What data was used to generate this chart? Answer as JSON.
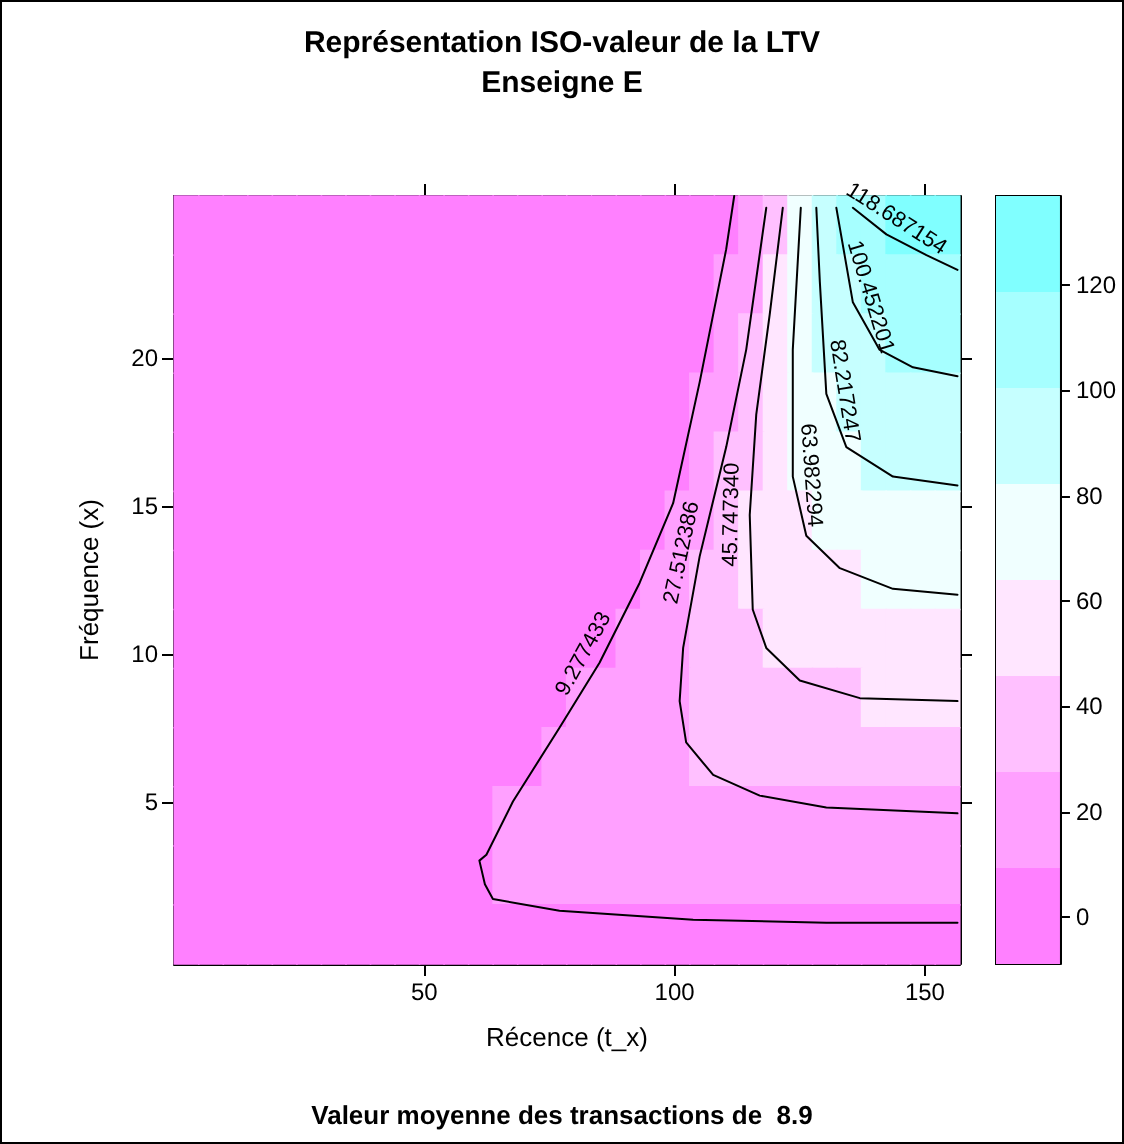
{
  "chart_data": {
    "type": "scatter",
    "title": "Représentation ISO-valeur de la LTV",
    "subtitle": "Enseigne E",
    "xlabel": "Récence (t_x)",
    "ylabel": "Fréquence (x)",
    "annotations": [
      "Valeur moyenne des transactions de  8.9"
    ],
    "xlim": [
      0,
      157
    ],
    "xticks": [
      50,
      100,
      150
    ],
    "ylim": [
      -0.5,
      25.5
    ],
    "yticks": [
      5,
      10,
      15,
      20
    ],
    "clim": [
      -8.96,
      136.92
    ],
    "cticks": [
      0,
      20,
      40,
      60,
      80,
      100,
      120
    ],
    "colors": [
      "#ff80ff",
      "#ffa0ff",
      "#ffc0ff",
      "#ffe6ff",
      "#f0ffff",
      "#c6ffff",
      "#a6ffff",
      "#80ffff"
    ],
    "marker": "square",
    "series": [
      {
        "x": [
          2.5,
          7.4,
          12.3,
          17.2,
          22.1,
          27,
          31.9,
          36.8,
          41.7,
          46.6,
          51.5,
          56.4,
          61.3,
          66.2,
          71.1,
          76,
          80.9,
          85.9,
          90.8,
          95.7,
          100.6,
          105.5,
          110.4,
          115.3,
          120.2,
          125.1,
          130,
          134.9,
          139.8,
          144.7,
          149.6,
          154.5,
          2.5,
          7.4,
          12.3,
          17.2,
          22.1,
          27,
          31.9,
          36.8,
          41.7,
          46.6,
          51.5,
          56.4,
          61.3,
          66.2,
          71.1,
          76,
          80.9,
          85.9,
          90.8,
          95.7,
          100.6,
          105.5,
          110.4,
          115.3,
          120.2,
          125.1,
          130,
          134.9,
          139.8,
          144.7,
          149.6,
          154.5,
          2.5,
          7.4,
          12.3,
          17.2,
          22.1,
          27,
          31.9,
          36.8,
          41.7,
          46.6,
          51.5,
          56.4,
          61.3,
          66.2,
          71.1,
          76,
          80.9,
          85.9,
          90.8,
          95.7,
          100.6,
          105.5,
          110.4,
          115.3,
          120.2,
          125.1,
          130,
          134.9,
          139.8,
          144.7,
          149.6,
          154.5,
          2.5,
          7.4,
          12.3,
          17.2,
          22.1,
          27,
          31.9,
          36.8,
          41.7,
          46.6,
          51.5,
          56.4,
          61.3,
          66.2,
          71.1,
          76,
          80.9,
          85.9,
          90.8,
          95.7,
          100.6,
          105.5,
          110.4,
          115.3,
          120.2,
          125.1,
          130,
          134.9,
          139.8,
          144.7,
          149.6,
          154.5,
          2.5,
          7.4,
          12.3,
          17.2,
          22.1,
          27,
          31.9,
          36.8,
          41.7,
          46.6,
          51.5,
          56.4,
          61.3,
          66.2,
          71.1,
          76,
          80.9,
          85.9,
          90.8,
          95.7,
          100.6,
          105.5,
          110.4,
          115.3,
          120.2,
          125.1,
          130,
          134.9,
          139.8,
          144.7,
          149.6,
          154.5,
          2.5,
          7.4,
          12.3,
          17.2,
          22.1,
          27,
          31.9,
          36.8,
          41.7,
          46.6,
          51.5,
          56.4,
          61.3,
          66.2,
          71.1,
          76,
          80.9,
          85.9,
          90.8,
          95.7,
          100.6,
          105.5,
          110.4,
          115.3,
          120.2,
          125.1,
          130,
          134.9,
          139.8,
          144.7,
          149.6,
          154.5,
          2.5,
          7.4,
          12.3,
          17.2,
          22.1,
          27,
          31.9,
          36.8,
          41.7,
          46.6,
          51.5,
          56.4,
          61.3,
          66.2,
          71.1,
          76,
          80.9,
          85.9,
          90.8,
          95.7,
          100.6,
          105.5,
          110.4,
          115.3,
          120.2,
          125.1,
          130,
          134.9,
          139.8,
          144.7,
          149.6,
          154.5,
          2.5,
          7.4,
          12.3,
          17.2,
          22.1,
          27,
          31.9,
          36.8,
          41.7,
          46.6,
          51.5,
          56.4,
          61.3,
          66.2,
          71.1,
          76,
          80.9,
          85.9,
          90.8,
          95.7,
          100.6,
          105.5,
          110.4,
          115.3,
          120.2,
          125.1,
          130,
          134.9,
          139.8,
          144.7,
          149.6,
          154.5,
          2.5,
          7.4,
          12.3,
          17.2,
          22.1,
          27,
          31.9,
          36.8,
          41.7,
          46.6,
          51.5,
          56.4,
          61.3,
          66.2,
          71.1,
          76,
          80.9,
          85.9,
          90.8,
          95.7,
          100.6,
          105.5,
          110.4,
          115.3,
          120.2,
          125.1,
          130,
          134.9,
          139.8,
          144.7,
          149.6,
          154.5,
          2.5,
          7.4,
          12.3,
          17.2,
          22.1,
          27,
          31.9,
          36.8,
          41.7,
          46.6,
          51.5,
          56.4,
          61.3,
          66.2,
          71.1,
          76,
          80.9,
          85.9,
          90.8,
          95.7,
          100.6,
          105.5,
          110.4,
          115.3,
          120.2,
          125.1,
          130,
          134.9,
          139.8,
          144.7,
          149.6,
          154.5,
          2.5,
          7.4,
          12.3,
          17.2,
          22.1,
          27,
          31.9,
          36.8,
          41.7,
          46.6,
          51.5,
          56.4,
          61.3,
          66.2,
          71.1,
          76,
          80.9,
          85.9,
          90.8,
          95.7,
          100.6,
          105.5,
          110.4,
          115.3,
          120.2,
          125.1,
          130,
          134.9,
          139.8,
          144.7,
          149.6,
          154.5,
          2.5,
          7.4,
          12.3,
          17.2,
          22.1,
          27,
          31.9,
          36.8,
          41.7,
          46.6,
          51.5,
          56.4,
          61.3,
          66.2,
          71.1,
          76,
          80.9,
          85.9,
          90.8,
          95.7,
          100.6,
          105.5,
          110.4,
          115.3,
          120.2,
          125.1,
          130,
          134.9,
          139.8,
          144.7,
          149.6,
          154.5,
          2.5,
          7.4,
          12.3,
          17.2,
          22.1,
          27,
          31.9,
          36.8,
          41.7,
          46.6,
          51.5,
          56.4,
          61.3,
          66.2,
          71.1,
          76,
          80.9,
          85.9,
          90.8,
          95.7,
          100.6,
          105.5,
          110.4,
          115.3,
          120.2,
          125.1,
          130,
          134.9,
          139.8,
          144.7,
          149.6,
          154.5
        ],
        "values": [
          24.5,
          24.5,
          24.5,
          24.5,
          24.5,
          24.5,
          24.5,
          24.5,
          24.5,
          24.5,
          24.5,
          24.5,
          24.5,
          24.5,
          24.5,
          24.5,
          24.5,
          24.5,
          24.5,
          24.5,
          24.5,
          24.5,
          24.5,
          24.5,
          24.5,
          24.5,
          24.5,
          24.5,
          24.5,
          24.5,
          24.5,
          24.5,
          22.5,
          22.5,
          22.5,
          22.5,
          22.5,
          22.5,
          22.5,
          22.5,
          22.5,
          22.5,
          22.5,
          22.5,
          22.5,
          22.5,
          22.5,
          22.5,
          22.5,
          22.5,
          22.5,
          22.5,
          22.5,
          22.5,
          22.5,
          22.5,
          22.5,
          22.5,
          22.5,
          22.5,
          22.5,
          22.5,
          22.5,
          22.5,
          20.5,
          20.5,
          20.5,
          20.5,
          20.5,
          20.5,
          20.5,
          20.5,
          20.5,
          20.5,
          20.5,
          20.5,
          20.5,
          20.5,
          20.5,
          20.5,
          20.5,
          20.5,
          20.5,
          20.5,
          20.5,
          20.5,
          20.5,
          20.5,
          20.5,
          20.5,
          20.5,
          20.5,
          20.5,
          20.5,
          20.5,
          20.5,
          18.5,
          18.5,
          18.5,
          18.5,
          18.5,
          18.5,
          18.5,
          18.5,
          18.5,
          18.5,
          18.5,
          18.5,
          18.5,
          18.5,
          18.5,
          18.5,
          18.5,
          18.5,
          18.5,
          18.5,
          18.5,
          18.5,
          18.5,
          18.5,
          18.5,
          18.5,
          18.5,
          18.5,
          18.5,
          18.5,
          18.5,
          18.5,
          16.5,
          16.5,
          16.5,
          16.5,
          16.5,
          16.5,
          16.5,
          16.5,
          16.5,
          16.5,
          16.5,
          16.5,
          16.5,
          16.5,
          16.5,
          16.5,
          16.5,
          16.5,
          16.5,
          16.5,
          16.5,
          16.5,
          16.5,
          16.5,
          16.5,
          16.5,
          16.5,
          16.5,
          16.5,
          16.5,
          16.5,
          16.5,
          14.5,
          14.5,
          14.5,
          14.5,
          14.5,
          14.5,
          14.5,
          14.5,
          14.5,
          14.5,
          14.5,
          14.5,
          14.5,
          14.5,
          14.5,
          14.5,
          14.5,
          14.5,
          14.5,
          14.5,
          14.5,
          14.5,
          14.5,
          14.5,
          14.5,
          14.5,
          14.5,
          14.5,
          14.5,
          14.5,
          14.5,
          14.5,
          12.5,
          12.5,
          12.5,
          12.5,
          12.5,
          12.5,
          12.5,
          12.5,
          12.5,
          12.5,
          12.5,
          12.5,
          12.5,
          12.5,
          12.5,
          12.5,
          12.5,
          12.5,
          12.5,
          12.5,
          12.5,
          12.5,
          12.5,
          12.5,
          12.5,
          12.5,
          12.5,
          12.5,
          12.5,
          12.5,
          12.5,
          12.5,
          10.5,
          10.5,
          10.5,
          10.5,
          10.5,
          10.5,
          10.5,
          10.5,
          10.5,
          10.5,
          10.5,
          10.5,
          10.5,
          10.5,
          10.5,
          10.5,
          10.5,
          10.5,
          10.5,
          10.5,
          10.5,
          10.5,
          10.5,
          10.5,
          10.5,
          10.5,
          10.5,
          10.5,
          10.5,
          10.5,
          10.5,
          10.5,
          8.5,
          8.5,
          8.5,
          8.5,
          8.5,
          8.5,
          8.5,
          8.5,
          8.5,
          8.5,
          8.5,
          8.5,
          8.5,
          8.5,
          8.5,
          8.5,
          8.5,
          8.5,
          8.5,
          8.5,
          8.5,
          8.5,
          8.5,
          8.5,
          8.5,
          8.5,
          8.5,
          8.5,
          8.5,
          8.5,
          8.5,
          8.5,
          6.5,
          6.5,
          6.5,
          6.5,
          6.5,
          6.5,
          6.5,
          6.5,
          6.5,
          6.5,
          6.5,
          6.5,
          6.5,
          6.5,
          6.5,
          6.5,
          6.5,
          6.5,
          6.5,
          6.5,
          6.5,
          6.5,
          6.5,
          6.5,
          6.5,
          6.5,
          6.5,
          6.5,
          6.5,
          6.5,
          6.5,
          6.5,
          4.5,
          4.5,
          4.5,
          4.5,
          4.5,
          4.5,
          4.5,
          4.5,
          4.5,
          4.5,
          4.5,
          4.5,
          4.5,
          4.5,
          4.5,
          4.5,
          4.5,
          4.5,
          4.5,
          4.5,
          4.5,
          4.5,
          4.5,
          4.5,
          4.5,
          4.5,
          4.5,
          4.5,
          4.5,
          4.5,
          4.5,
          4.5,
          2.5,
          2.5,
          2.5,
          2.5,
          2.5,
          2.5,
          2.5,
          2.5,
          2.5,
          2.5,
          2.5,
          2.5,
          2.5,
          2.5,
          2.5,
          2.5,
          2.5,
          2.5,
          2.5,
          2.5,
          2.5,
          2.5,
          2.5,
          2.5,
          2.5,
          2.5,
          2.5,
          2.5,
          2.5,
          2.5,
          2.5,
          2.5,
          0.5,
          0.5,
          0.5,
          0.5,
          0.5,
          0.5,
          0.5,
          0.5,
          0.5,
          0.5,
          0.5,
          0.5,
          0.5,
          0.5,
          0.5,
          0.5,
          0.5,
          0.5,
          0.5,
          0.5,
          0.5,
          0.5,
          0.5,
          0.5,
          0.5,
          0.5,
          0.5,
          0.5,
          0.5,
          0.5,
          0.5,
          0.5
        ],
        "colors": [
          "#ff80ff",
          "#ff80ff",
          "#ff80ff",
          "#ff80ff",
          "#ff80ff",
          "#ff80ff",
          "#ff80ff",
          "#ff80ff",
          "#ff80ff",
          "#ff80ff",
          "#ff80ff",
          "#ff80ff",
          "#ff80ff",
          "#ff80ff",
          "#ff80ff",
          "#ff80ff",
          "#ff80ff",
          "#ff80ff",
          "#ff80ff",
          "#ff80ff",
          "#ff80ff",
          "#ff80ff",
          "#ff80ff",
          "#ffa0ff",
          "#ffc0ff",
          "#f0ffff",
          "#c6ffff",
          "#a6ffff",
          "#a6ffff",
          "#80ffff",
          "#80ffff",
          "#80ffff",
          "#ff80ff",
          "#ff80ff",
          "#ff80ff",
          "#ff80ff",
          "#ff80ff",
          "#ff80ff",
          "#ff80ff",
          "#ff80ff",
          "#ff80ff",
          "#ff80ff",
          "#ff80ff",
          "#ff80ff",
          "#ff80ff",
          "#ff80ff",
          "#ff80ff",
          "#ff80ff",
          "#ff80ff",
          "#ff80ff",
          "#ff80ff",
          "#ff80ff",
          "#ff80ff",
          "#ff80ff",
          "#ffa0ff",
          "#ffa0ff",
          "#ffe6ff",
          "#f0ffff",
          "#c6ffff",
          "#c6ffff",
          "#a6ffff",
          "#a6ffff",
          "#a6ffff",
          "#a6ffff",
          "#ff80ff",
          "#ff80ff",
          "#ff80ff",
          "#ff80ff",
          "#ff80ff",
          "#ff80ff",
          "#ff80ff",
          "#ff80ff",
          "#ff80ff",
          "#ff80ff",
          "#ff80ff",
          "#ff80ff",
          "#ff80ff",
          "#ff80ff",
          "#ff80ff",
          "#ff80ff",
          "#ff80ff",
          "#ff80ff",
          "#ff80ff",
          "#ff80ff",
          "#ff80ff",
          "#ff80ff",
          "#ffa0ff",
          "#ffc0ff",
          "#ffe6ff",
          "#f0ffff",
          "#c6ffff",
          "#c6ffff",
          "#c6ffff",
          "#a6ffff",
          "#a6ffff",
          "#a6ffff",
          "#ff80ff",
          "#ff80ff",
          "#ff80ff",
          "#ff80ff",
          "#ff80ff",
          "#ff80ff",
          "#ff80ff",
          "#ff80ff",
          "#ff80ff",
          "#ff80ff",
          "#ff80ff",
          "#ff80ff",
          "#ff80ff",
          "#ff80ff",
          "#ff80ff",
          "#ff80ff",
          "#ff80ff",
          "#ff80ff",
          "#ff80ff",
          "#ff80ff",
          "#ff80ff",
          "#ffa0ff",
          "#ffa0ff",
          "#ffc0ff",
          "#ffe6ff",
          "#f0ffff",
          "#f0ffff",
          "#c6ffff",
          "#c6ffff",
          "#c6ffff",
          "#c6ffff",
          "#c6ffff",
          "#ff80ff",
          "#ff80ff",
          "#ff80ff",
          "#ff80ff",
          "#ff80ff",
          "#ff80ff",
          "#ff80ff",
          "#ff80ff",
          "#ff80ff",
          "#ff80ff",
          "#ff80ff",
          "#ff80ff",
          "#ff80ff",
          "#ff80ff",
          "#ff80ff",
          "#ff80ff",
          "#ff80ff",
          "#ff80ff",
          "#ff80ff",
          "#ff80ff",
          "#ff80ff",
          "#ffa0ff",
          "#ffc0ff",
          "#ffc0ff",
          "#ffe6ff",
          "#f0ffff",
          "#f0ffff",
          "#f0ffff",
          "#c6ffff",
          "#c6ffff",
          "#c6ffff",
          "#c6ffff",
          "#ff80ff",
          "#ff80ff",
          "#ff80ff",
          "#ff80ff",
          "#ff80ff",
          "#ff80ff",
          "#ff80ff",
          "#ff80ff",
          "#ff80ff",
          "#ff80ff",
          "#ff80ff",
          "#ff80ff",
          "#ff80ff",
          "#ff80ff",
          "#ff80ff",
          "#ff80ff",
          "#ff80ff",
          "#ff80ff",
          "#ff80ff",
          "#ff80ff",
          "#ffa0ff",
          "#ffa0ff",
          "#ffc0ff",
          "#ffe6ff",
          "#ffe6ff",
          "#ffe6ff",
          "#f0ffff",
          "#f0ffff",
          "#f0ffff",
          "#f0ffff",
          "#f0ffff",
          "#f0ffff",
          "#ff80ff",
          "#ff80ff",
          "#ff80ff",
          "#ff80ff",
          "#ff80ff",
          "#ff80ff",
          "#ff80ff",
          "#ff80ff",
          "#ff80ff",
          "#ff80ff",
          "#ff80ff",
          "#ff80ff",
          "#ff80ff",
          "#ff80ff",
          "#ff80ff",
          "#ff80ff",
          "#ff80ff",
          "#ff80ff",
          "#ff80ff",
          "#ffa0ff",
          "#ffa0ff",
          "#ffc0ff",
          "#ffc0ff",
          "#ffe6ff",
          "#ffe6ff",
          "#ffe6ff",
          "#ffe6ff",
          "#ffe6ff",
          "#f0ffff",
          "#f0ffff",
          "#f0ffff",
          "#f0ffff",
          "#ff80ff",
          "#ff80ff",
          "#ff80ff",
          "#ff80ff",
          "#ff80ff",
          "#ff80ff",
          "#ff80ff",
          "#ff80ff",
          "#ff80ff",
          "#ff80ff",
          "#ff80ff",
          "#ff80ff",
          "#ff80ff",
          "#ff80ff",
          "#ff80ff",
          "#ff80ff",
          "#ff80ff",
          "#ff80ff",
          "#ffa0ff",
          "#ffa0ff",
          "#ffa0ff",
          "#ffc0ff",
          "#ffc0ff",
          "#ffc0ff",
          "#ffe6ff",
          "#ffe6ff",
          "#ffe6ff",
          "#ffe6ff",
          "#ffe6ff",
          "#ffe6ff",
          "#ffe6ff",
          "#ffe6ff",
          "#ff80ff",
          "#ff80ff",
          "#ff80ff",
          "#ff80ff",
          "#ff80ff",
          "#ff80ff",
          "#ff80ff",
          "#ff80ff",
          "#ff80ff",
          "#ff80ff",
          "#ff80ff",
          "#ff80ff",
          "#ff80ff",
          "#ff80ff",
          "#ff80ff",
          "#ff80ff",
          "#ffa0ff",
          "#ffa0ff",
          "#ffa0ff",
          "#ffa0ff",
          "#ffa0ff",
          "#ffc0ff",
          "#ffc0ff",
          "#ffc0ff",
          "#ffc0ff",
          "#ffc0ff",
          "#ffc0ff",
          "#ffc0ff",
          "#ffe6ff",
          "#ffe6ff",
          "#ffe6ff",
          "#ffe6ff",
          "#ff80ff",
          "#ff80ff",
          "#ff80ff",
          "#ff80ff",
          "#ff80ff",
          "#ff80ff",
          "#ff80ff",
          "#ff80ff",
          "#ff80ff",
          "#ff80ff",
          "#ff80ff",
          "#ff80ff",
          "#ff80ff",
          "#ff80ff",
          "#ff80ff",
          "#ffa0ff",
          "#ffa0ff",
          "#ffa0ff",
          "#ffa0ff",
          "#ffa0ff",
          "#ffa0ff",
          "#ffc0ff",
          "#ffc0ff",
          "#ffc0ff",
          "#ffc0ff",
          "#ffc0ff",
          "#ffc0ff",
          "#ffc0ff",
          "#ffc0ff",
          "#ffc0ff",
          "#ffc0ff",
          "#ffc0ff",
          "#ff80ff",
          "#ff80ff",
          "#ff80ff",
          "#ff80ff",
          "#ff80ff",
          "#ff80ff",
          "#ff80ff",
          "#ff80ff",
          "#ff80ff",
          "#ff80ff",
          "#ff80ff",
          "#ff80ff",
          "#ff80ff",
          "#ffa0ff",
          "#ffa0ff",
          "#ffa0ff",
          "#ffa0ff",
          "#ffa0ff",
          "#ffa0ff",
          "#ffa0ff",
          "#ffa0ff",
          "#ffa0ff",
          "#ffa0ff",
          "#ffa0ff",
          "#ffa0ff",
          "#ffa0ff",
          "#ffa0ff",
          "#ffa0ff",
          "#ffa0ff",
          "#ffa0ff",
          "#ffa0ff",
          "#ffa0ff",
          "#ff80ff",
          "#ff80ff",
          "#ff80ff",
          "#ff80ff",
          "#ff80ff",
          "#ff80ff",
          "#ff80ff",
          "#ff80ff",
          "#ff80ff",
          "#ff80ff",
          "#ff80ff",
          "#ff80ff",
          "#ff80ff",
          "#ffa0ff",
          "#ffa0ff",
          "#ffa0ff",
          "#ffa0ff",
          "#ffa0ff",
          "#ffa0ff",
          "#ffa0ff",
          "#ffa0ff",
          "#ffa0ff",
          "#ffa0ff",
          "#ffa0ff",
          "#ffa0ff",
          "#ffa0ff",
          "#ffa0ff",
          "#ffa0ff",
          "#ffa0ff",
          "#ffa0ff",
          "#ffa0ff",
          "#ffa0ff",
          "#ff80ff",
          "#ff80ff",
          "#ff80ff",
          "#ff80ff",
          "#ff80ff",
          "#ff80ff",
          "#ff80ff",
          "#ff80ff",
          "#ff80ff",
          "#ff80ff",
          "#ff80ff",
          "#ff80ff",
          "#ff80ff",
          "#ff80ff",
          "#ff80ff",
          "#ff80ff",
          "#ff80ff",
          "#ff80ff",
          "#ff80ff",
          "#ff80ff",
          "#ff80ff",
          "#ff80ff",
          "#ff80ff",
          "#ff80ff",
          "#ff80ff",
          "#ff80ff",
          "#ff80ff",
          "#ff80ff",
          "#ff80ff",
          "#ff80ff",
          "#ff80ff",
          "#ff80ff"
        ]
      },
      {
        "type": "line",
        "name": "9.277433",
        "color": "#000000",
        "marker": "none",
        "x": [
          111.9,
          110.3,
          105,
          99.7,
          93,
          85,
          77,
          67.7,
          62.4,
          61,
          62.1,
          63.7,
          77,
          103.7,
          130.3,
          156.5
        ],
        "values": [
          25.5,
          23.7,
          19.2,
          15.1,
          12.4,
          9.7,
          7.5,
          5.0,
          3.2,
          3.0,
          2.2,
          1.7,
          1.3,
          1.0,
          0.9,
          0.9
        ]
      },
      {
        "type": "line",
        "name": "27.512386",
        "color": "#000000",
        "marker": "none",
        "x": [
          118.3,
          114.3,
          110.3,
          105,
          101.7,
          101,
          102.3,
          107.7,
          117,
          130.3,
          156.5
        ],
        "values": [
          25.1,
          20.3,
          17.0,
          13.3,
          10.2,
          8.4,
          7.0,
          5.9,
          5.2,
          4.8,
          4.6
        ]
      },
      {
        "type": "line",
        "name": "45.747340",
        "color": "#000000",
        "marker": "none",
        "x": [
          121.6,
          119,
          116.3,
          115,
          115.6,
          118.3,
          125,
          137,
          156.5
        ],
        "values": [
          25.1,
          21.5,
          18.1,
          14.7,
          11.5,
          10.2,
          9.1,
          8.5,
          8.4
        ]
      },
      {
        "type": "line",
        "name": "63.982294",
        "color": "#000000",
        "marker": "none",
        "x": [
          125.2,
          123.6,
          123.6,
          126.3,
          133,
          143.6,
          156.5
        ],
        "values": [
          25.1,
          20.3,
          16.0,
          14.0,
          12.9,
          12.2,
          12.0
        ]
      },
      {
        "type": "line",
        "name": "82.217247",
        "color": "#000000",
        "marker": "none",
        "x": [
          128.3,
          129,
          130.3,
          134.3,
          143.6,
          156.5
        ],
        "values": [
          25.1,
          22.6,
          18.8,
          17.0,
          16.0,
          15.7
        ]
      },
      {
        "type": "line",
        "name": "100.452201",
        "color": "#000000",
        "marker": "none",
        "x": [
          132.3,
          135.6,
          140.9,
          147.6,
          156.5
        ],
        "values": [
          25.1,
          21.9,
          20.3,
          19.7,
          19.4
        ]
      },
      {
        "type": "line",
        "name": "118.687154",
        "color": "#000000",
        "marker": "none",
        "x": [
          135.6,
          142.3,
          150.3,
          156.5
        ],
        "values": [
          25.1,
          24.2,
          23.5,
          23.0
        ]
      }
    ]
  }
}
